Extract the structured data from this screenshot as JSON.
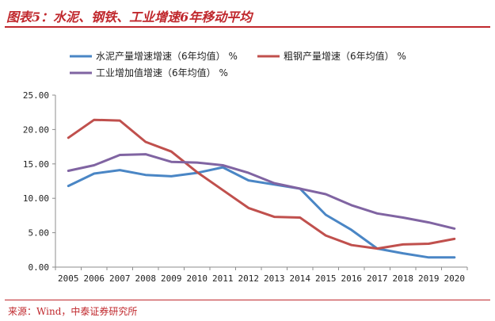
{
  "figure": {
    "title": "图表5：水泥、钢铁、工业增速6年移动平均",
    "source": "来源：Wind，中泰证券研究所"
  },
  "colors": {
    "title": "#c0282d",
    "axis": "#8c8c8c",
    "grid": "#d9d9d9"
  },
  "chart_data": {
    "type": "line",
    "x": [
      "2005",
      "2006",
      "2007",
      "2008",
      "2009",
      "2010",
      "2011",
      "2012",
      "2013",
      "2014",
      "2015",
      "2016",
      "2017",
      "2018",
      "2019",
      "2020"
    ],
    "ylim": [
      0,
      25
    ],
    "yticks": [
      "0.00",
      "5.00",
      "10.00",
      "15.00",
      "20.00",
      "25.00"
    ],
    "grid": false,
    "legend_position": "top",
    "series": [
      {
        "name": "水泥产量增速增速（6年均值） %",
        "color": "#4a86c5",
        "values": [
          11.8,
          13.6,
          14.1,
          13.4,
          13.2,
          13.7,
          14.5,
          12.6,
          12.0,
          11.4,
          7.6,
          5.4,
          2.7,
          2.0,
          1.4,
          1.4
        ]
      },
      {
        "name": "粗钢产量增速（6年均值） %",
        "color": "#c0504d",
        "values": [
          18.8,
          21.4,
          21.3,
          18.2,
          16.8,
          13.8,
          11.2,
          8.6,
          7.3,
          7.2,
          4.6,
          3.2,
          2.7,
          3.3,
          3.4,
          4.1
        ]
      },
      {
        "name": "工业增加值增速（6年均值） %",
        "color": "#8064a2",
        "values": [
          14.0,
          14.8,
          16.3,
          16.4,
          15.3,
          15.2,
          14.8,
          13.7,
          12.2,
          11.4,
          10.6,
          9.0,
          7.8,
          7.2,
          6.5,
          5.6
        ]
      }
    ]
  }
}
